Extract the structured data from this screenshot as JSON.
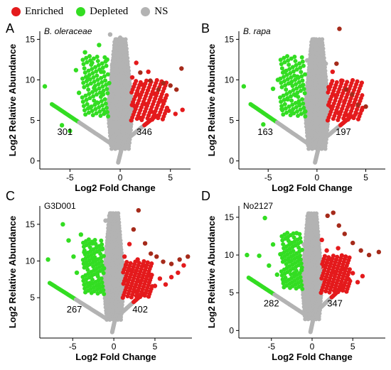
{
  "legend": {
    "items": [
      {
        "label": "Enriched",
        "color": "#e41a1c"
      },
      {
        "label": "Depleted",
        "color": "#33dd22"
      },
      {
        "label": "NS",
        "color": "#b3b3b3"
      }
    ]
  },
  "colors": {
    "enriched": "#e41a1c",
    "enriched_dark": "#a52a1a",
    "depleted": "#33dd22",
    "ns": "#b3b3b3"
  },
  "chart_data": [
    {
      "type": "scatter",
      "panel_letter": "A",
      "panel_label": "B. oleraceae",
      "panel_label_italic": true,
      "xlabel": "Log2 Fold Change",
      "ylabel": "Log2 Relative Abundance",
      "xlim": [
        -8,
        7
      ],
      "ylim": [
        -1,
        16
      ],
      "xticks": [
        -5,
        0,
        5
      ],
      "yticks": [
        0,
        5,
        10,
        15
      ],
      "depleted_count": "301",
      "enriched_count": "346",
      "count_positions": {
        "depleted": [
          -5.5,
          3.2
        ],
        "enriched": [
          2.4,
          3.2
        ]
      },
      "series": [
        {
          "category": "depleted",
          "points": [
            [
              -7.5,
              9.2
            ],
            [
              -5.8,
              4.4
            ],
            [
              -5.0,
              3.7
            ],
            [
              -4.4,
              11.2
            ],
            [
              -4.1,
              8.4
            ],
            [
              -3.5,
              13.4
            ],
            [
              -3.3,
              10.3
            ],
            [
              -3.0,
              6.6
            ],
            [
              -2.8,
              12.1
            ],
            [
              -2.6,
              9.0
            ],
            [
              -2.3,
              7.2
            ],
            [
              -2.1,
              14.3
            ],
            [
              -1.9,
              11.0
            ],
            [
              -1.7,
              8.2
            ],
            [
              -1.5,
              6.0
            ],
            [
              -1.3,
              12.5
            ],
            [
              -1.1,
              9.6
            ]
          ]
        },
        {
          "category": "ns",
          "points": [
            [
              -1.0,
              15.6
            ],
            [
              -0.8,
              11.8
            ],
            [
              -0.5,
              14.1
            ],
            [
              -0.3,
              9.2
            ],
            [
              0.0,
              15.2
            ],
            [
              0.2,
              12.0
            ],
            [
              0.4,
              8.7
            ],
            [
              0.6,
              13.5
            ],
            [
              0.8,
              10.6
            ]
          ]
        },
        {
          "category": "enriched",
          "points": [
            [
              1.2,
              10.3
            ],
            [
              1.4,
              6.8
            ],
            [
              1.6,
              12.1
            ],
            [
              1.8,
              8.2
            ],
            [
              2.0,
              5.3
            ],
            [
              2.2,
              9.4
            ],
            [
              2.5,
              7.0
            ],
            [
              2.8,
              11.0
            ],
            [
              3.1,
              6.1
            ],
            [
              3.4,
              8.3
            ],
            [
              3.8,
              5.6
            ],
            [
              4.2,
              7.4
            ],
            [
              4.8,
              6.2
            ],
            [
              5.5,
              5.8
            ],
            [
              6.2,
              6.3
            ]
          ]
        },
        {
          "category": "enriched_dark",
          "points": [
            [
              2.0,
              10.9
            ],
            [
              3.0,
              9.9
            ],
            [
              3.8,
              8.8
            ],
            [
              4.3,
              9.6
            ],
            [
              5.0,
              9.3
            ],
            [
              5.6,
              8.8
            ],
            [
              6.1,
              11.4
            ]
          ]
        }
      ]
    },
    {
      "type": "scatter",
      "panel_letter": "B",
      "panel_label": "B. rapa",
      "panel_label_italic": true,
      "xlabel": "Log2 Fold Change",
      "ylabel": "Log2 Relative Abundance",
      "xlim": [
        -8,
        7
      ],
      "ylim": [
        -1,
        16
      ],
      "xticks": [
        -5,
        0,
        5
      ],
      "yticks": [
        0,
        5,
        10,
        15
      ],
      "depleted_count": "163",
      "enriched_count": "197",
      "count_positions": {
        "depleted": [
          -5.3,
          3.2
        ],
        "enriched": [
          2.7,
          3.2
        ]
      },
      "series": [
        {
          "category": "depleted",
          "points": [
            [
              -7.5,
              9.2
            ],
            [
              -5.5,
              4.5
            ],
            [
              -4.5,
              8.9
            ],
            [
              -4.0,
              10.0
            ],
            [
              -3.6,
              6.4
            ],
            [
              -3.3,
              11.0
            ],
            [
              -3.0,
              7.6
            ],
            [
              -2.7,
              9.6
            ],
            [
              -2.5,
              5.9
            ],
            [
              -2.2,
              8.1
            ],
            [
              -2.0,
              10.4
            ],
            [
              -1.8,
              7.0
            ],
            [
              -1.5,
              9.3
            ],
            [
              -1.2,
              6.1
            ]
          ]
        },
        {
          "category": "ns",
          "points": [
            [
              -1.0,
              12.4
            ],
            [
              -0.6,
              13.8
            ],
            [
              -0.3,
              15.0
            ],
            [
              0.0,
              13.2
            ],
            [
              0.3,
              11.7
            ],
            [
              0.6,
              9.7
            ],
            [
              0.9,
              12.0
            ]
          ]
        },
        {
          "category": "enriched",
          "points": [
            [
              1.2,
              9.1
            ],
            [
              1.4,
              6.7
            ],
            [
              1.6,
              11.0
            ],
            [
              1.9,
              8.1
            ],
            [
              2.2,
              5.9
            ],
            [
              2.5,
              9.9
            ],
            [
              2.8,
              7.3
            ],
            [
              3.2,
              5.6
            ],
            [
              3.6,
              6.8
            ],
            [
              4.0,
              5.9
            ],
            [
              4.6,
              6.3
            ]
          ]
        },
        {
          "category": "enriched_dark",
          "points": [
            [
              2.0,
              12.0
            ],
            [
              2.3,
              16.3
            ],
            [
              3.0,
              8.8
            ],
            [
              3.6,
              8.2
            ],
            [
              4.2,
              6.9
            ],
            [
              5.0,
              6.7
            ]
          ]
        }
      ]
    },
    {
      "type": "scatter",
      "panel_letter": "C",
      "panel_label": "G3D001",
      "panel_label_italic": false,
      "xlabel": "Log2 Fold Change",
      "ylabel": "Log2 Relative Abundance",
      "xlim": [
        -9,
        9.5
      ],
      "ylim": [
        -0.5,
        17.5
      ],
      "xticks": [
        -5,
        0,
        5
      ],
      "yticks": [
        5,
        10,
        15
      ],
      "depleted_count": "267",
      "enriched_count": "402",
      "count_positions": {
        "depleted": [
          -4.8,
          3.0
        ],
        "enriched": [
          3.2,
          3.0
        ]
      },
      "series": [
        {
          "category": "depleted",
          "points": [
            [
              -8.0,
              10.2
            ],
            [
              -6.2,
              15.0
            ],
            [
              -5.5,
              12.8
            ],
            [
              -4.9,
              10.6
            ],
            [
              -4.5,
              8.4
            ],
            [
              -4.0,
              13.6
            ],
            [
              -3.6,
              11.2
            ],
            [
              -3.2,
              9.4
            ],
            [
              -2.9,
              7.0
            ],
            [
              -2.6,
              12.4
            ],
            [
              -2.3,
              10.1
            ],
            [
              -2.0,
              8.2
            ],
            [
              -1.7,
              6.4
            ],
            [
              -1.4,
              11.6
            ],
            [
              -1.2,
              9.0
            ]
          ]
        },
        {
          "category": "ns",
          "points": [
            [
              -1.0,
              15.5
            ],
            [
              -0.7,
              13.5
            ],
            [
              -0.3,
              12.0
            ],
            [
              0.0,
              14.4
            ],
            [
              0.3,
              10.6
            ],
            [
              0.6,
              12.9
            ],
            [
              0.9,
              9.3
            ]
          ]
        },
        {
          "category": "enriched",
          "points": [
            [
              1.3,
              10.6
            ],
            [
              1.6,
              7.4
            ],
            [
              1.9,
              12.3
            ],
            [
              2.2,
              8.6
            ],
            [
              2.5,
              5.9
            ],
            [
              2.9,
              10.2
            ],
            [
              3.2,
              7.2
            ],
            [
              3.6,
              9.4
            ],
            [
              4.0,
              6.0
            ],
            [
              4.5,
              8.1
            ],
            [
              5.0,
              6.6
            ],
            [
              5.6,
              7.6
            ],
            [
              6.3,
              6.8
            ],
            [
              7.0,
              7.8
            ],
            [
              7.8,
              8.4
            ],
            [
              8.5,
              9.4
            ]
          ]
        },
        {
          "category": "enriched_dark",
          "points": [
            [
              2.4,
              14.3
            ],
            [
              3.0,
              16.9
            ],
            [
              3.8,
              12.4
            ],
            [
              4.5,
              11.0
            ],
            [
              5.2,
              10.6
            ],
            [
              6.0,
              9.9
            ],
            [
              7.0,
              9.6
            ],
            [
              8.0,
              10.2
            ],
            [
              9.0,
              10.6
            ]
          ]
        }
      ]
    },
    {
      "type": "scatter",
      "panel_letter": "D",
      "panel_label": "No2127",
      "panel_label_italic": false,
      "xlabel": "Log2 Fold Change",
      "ylabel": "Log2 Relative Abundance",
      "xlim": [
        -9,
        9
      ],
      "ylim": [
        -1,
        16.5
      ],
      "xticks": [
        -5,
        0,
        5
      ],
      "yticks": [
        0,
        5,
        10,
        15
      ],
      "depleted_count": "282",
      "enriched_count": "347",
      "count_positions": {
        "depleted": [
          -5.0,
          3.2
        ],
        "enriched": [
          2.8,
          3.2
        ]
      },
      "series": [
        {
          "category": "depleted",
          "points": [
            [
              -8.0,
              10.0
            ],
            [
              -6.5,
              9.9
            ],
            [
              -5.8,
              14.9
            ],
            [
              -5.3,
              8.6
            ],
            [
              -4.8,
              11.4
            ],
            [
              -4.3,
              7.4
            ],
            [
              -3.9,
              10.1
            ],
            [
              -3.5,
              6.5
            ],
            [
              -3.1,
              12.2
            ],
            [
              -2.8,
              9.1
            ],
            [
              -2.5,
              11.6
            ],
            [
              -2.2,
              7.6
            ],
            [
              -1.9,
              12.9
            ],
            [
              -1.6,
              9.6
            ],
            [
              -1.3,
              8.0
            ]
          ]
        },
        {
          "category": "ns",
          "points": [
            [
              -1.0,
              11.4
            ],
            [
              -0.6,
              13.5
            ],
            [
              -0.3,
              10.2
            ],
            [
              0.0,
              12.6
            ],
            [
              0.3,
              9.2
            ],
            [
              0.6,
              11.0
            ],
            [
              0.9,
              8.4
            ]
          ]
        },
        {
          "category": "enriched",
          "points": [
            [
              1.2,
              12.0
            ],
            [
              1.5,
              8.6
            ],
            [
              1.8,
              10.6
            ],
            [
              2.1,
              6.6
            ],
            [
              2.4,
              9.4
            ],
            [
              2.8,
              7.6
            ],
            [
              3.2,
              10.9
            ],
            [
              3.6,
              6.1
            ],
            [
              4.0,
              8.2
            ],
            [
              4.5,
              6.8
            ],
            [
              5.0,
              7.6
            ],
            [
              5.6,
              6.4
            ],
            [
              6.2,
              7.2
            ]
          ]
        },
        {
          "category": "enriched_dark",
          "points": [
            [
              1.9,
              15.2
            ],
            [
              2.6,
              15.6
            ],
            [
              3.3,
              13.9
            ],
            [
              4.0,
              12.8
            ],
            [
              5.0,
              11.6
            ],
            [
              6.0,
              10.6
            ],
            [
              7.0,
              10.0
            ],
            [
              8.2,
              10.4
            ]
          ]
        }
      ]
    }
  ]
}
